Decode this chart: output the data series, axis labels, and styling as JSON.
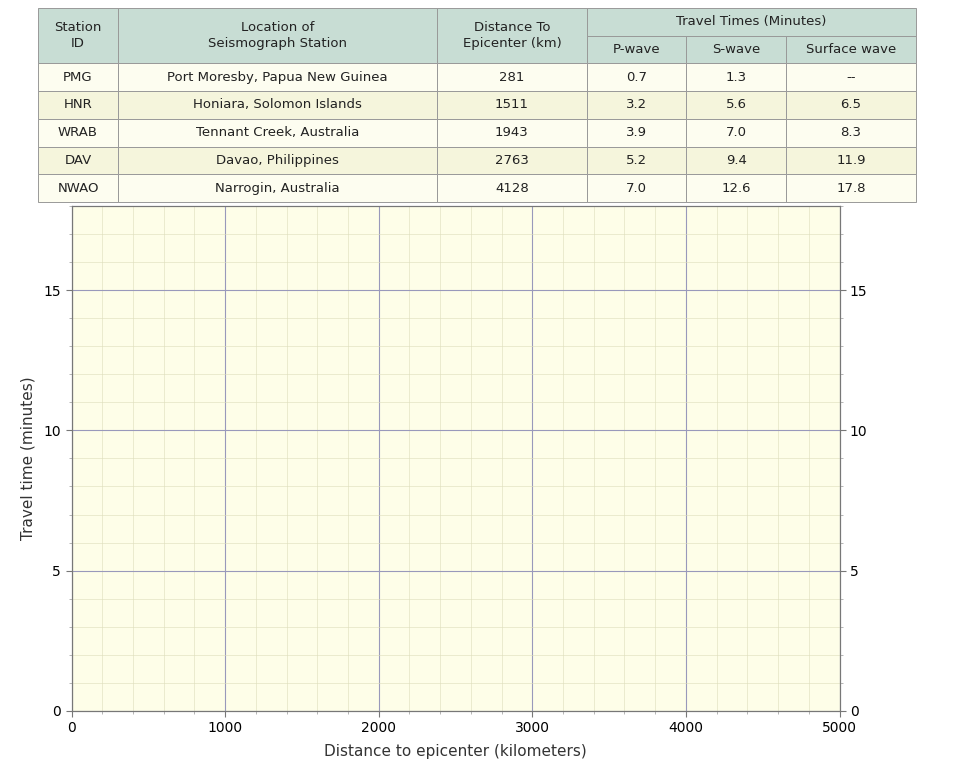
{
  "table": {
    "rows": [
      [
        "PMG",
        "Port Moresby, Papua New Guinea",
        "281",
        "0.7",
        "1.3",
        "--"
      ],
      [
        "HNR",
        "Honiara, Solomon Islands",
        "1511",
        "3.2",
        "5.6",
        "6.5"
      ],
      [
        "WRAB",
        "Tennant Creek, Australia",
        "1943",
        "3.9",
        "7.0",
        "8.3"
      ],
      [
        "DAV",
        "Davao, Philippines",
        "2763",
        "5.2",
        "9.4",
        "11.9"
      ],
      [
        "NWAO",
        "Narrogin, Australia",
        "4128",
        "7.0",
        "12.6",
        "17.8"
      ]
    ],
    "header_bg": "#c8ddd4",
    "row_bg_odd": "#fdfdf0",
    "row_bg_even": "#f5f5dc",
    "border_color": "#999999",
    "text_color": "#222222",
    "col_widths": [
      0.08,
      0.32,
      0.15,
      0.1,
      0.1,
      0.13
    ]
  },
  "graph": {
    "bg_color": "#fefee8",
    "grid_major_color": "#9999bb",
    "grid_minor_color": "#ddddbb",
    "xlabel": "Distance to epicenter (kilometers)",
    "ylabel": "Travel time (minutes)",
    "xlim": [
      0,
      5000
    ],
    "ylim": [
      0,
      18
    ],
    "xticks": [
      0,
      1000,
      2000,
      3000,
      4000,
      5000
    ],
    "yticks": [
      0,
      5,
      10,
      15
    ],
    "minor_xtick_interval": 200,
    "minor_ytick_interval": 1,
    "right_yticks": [
      0,
      5,
      10,
      15
    ],
    "axis_label_fontsize": 11,
    "tick_fontsize": 10
  }
}
